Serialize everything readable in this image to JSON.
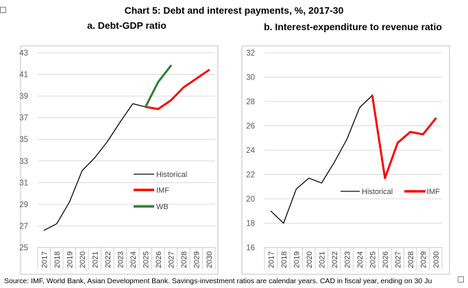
{
  "figure": {
    "title": "Chart 5: Debt and interest payments, %, 2017-30",
    "source": "Source: IMF, World Bank, Asian Development Bank. Savings-investment ratios are calendar years. CAD in fiscal year, ending on 30 Ju"
  },
  "colors": {
    "historical": "#000000",
    "imf": "#ff0000",
    "wb": "#2e7d32",
    "grid": "#d9d9d9",
    "frame": "#bfbfbf"
  },
  "chart_data": [
    {
      "type": "line",
      "subtitle": "a.   Debt-GDP ratio",
      "years": [
        "2017",
        "2018",
        "2019",
        "2020",
        "2021",
        "2022",
        "2023",
        "2024",
        "2025",
        "2026",
        "2027",
        "2028",
        "2029",
        "2030"
      ],
      "ylim": [
        25,
        43
      ],
      "yticks": [
        25,
        27,
        29,
        31,
        33,
        35,
        37,
        39,
        41,
        43
      ],
      "grid": true,
      "legend_placement": "bottom-right",
      "series": [
        {
          "name": "Historical",
          "color_key": "historical",
          "start": 0,
          "values": [
            26.6,
            27.2,
            29.2,
            32.1,
            33.3,
            34.8,
            36.6,
            38.3,
            38.0
          ]
        },
        {
          "name": "IMF",
          "color_key": "imf",
          "start": 8,
          "values": [
            38.0,
            37.8,
            38.6,
            39.8,
            40.6,
            41.4
          ]
        },
        {
          "name": "WB",
          "color_key": "wb",
          "start": 8,
          "values": [
            38.0,
            40.3,
            41.8
          ]
        }
      ]
    },
    {
      "type": "line",
      "subtitle": "b.   Interest-expenditure to revenue ratio",
      "years": [
        "2017",
        "2018",
        "2019",
        "2020",
        "2021",
        "2022",
        "2023",
        "2024",
        "2025",
        "2026",
        "2027",
        "2028",
        "2029",
        "2030"
      ],
      "ylim": [
        16,
        32
      ],
      "yticks": [
        16,
        18,
        20,
        22,
        24,
        26,
        28,
        30,
        32
      ],
      "grid": true,
      "legend_placement": "middle-right",
      "series": [
        {
          "name": "Historical",
          "color_key": "historical",
          "start": 0,
          "values": [
            19.0,
            18.0,
            20.8,
            21.7,
            21.3,
            23.0,
            24.9,
            27.5,
            28.5
          ]
        },
        {
          "name": "IMF",
          "color_key": "imf",
          "start": 8,
          "values": [
            28.5,
            21.7,
            24.6,
            25.5,
            25.3,
            26.6
          ]
        }
      ]
    }
  ]
}
